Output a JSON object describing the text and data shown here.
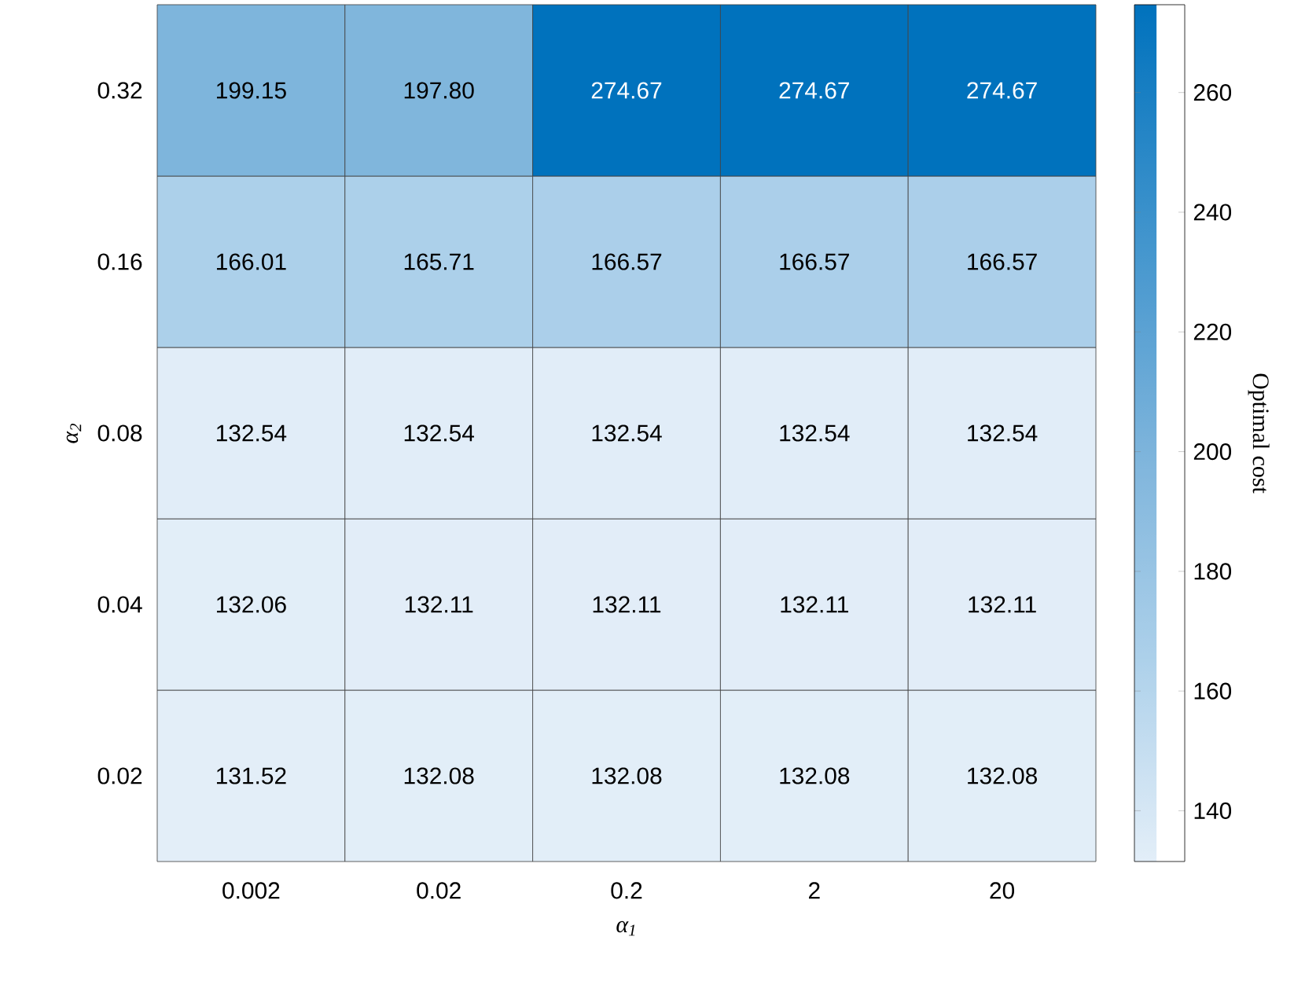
{
  "chart_data": {
    "type": "heatmap",
    "xlabel": "α$_{1}$",
    "ylabel": "α$_{2}$",
    "clabel": "Optimal cost",
    "categories": [
      "0.002",
      "0.02",
      "0.2",
      "2",
      "20"
    ],
    "y_categories": [
      "0.32",
      "0.16",
      "0.08",
      "0.04",
      "0.02"
    ],
    "cells": [
      [
        199.15,
        197.8,
        274.67,
        274.67,
        274.67
      ],
      [
        166.01,
        165.71,
        166.57,
        166.57,
        166.57
      ],
      [
        132.54,
        132.54,
        132.54,
        132.54,
        132.54
      ],
      [
        132.06,
        132.11,
        132.11,
        132.11,
        132.11
      ],
      [
        131.52,
        132.08,
        132.08,
        132.08,
        132.08
      ]
    ],
    "cell_labels": [
      [
        "199.15",
        "197.80",
        "274.67",
        "274.67",
        "274.67"
      ],
      [
        "166.01",
        "165.71",
        "166.57",
        "166.57",
        "166.57"
      ],
      [
        "132.54",
        "132.54",
        "132.54",
        "132.54",
        "132.54"
      ],
      [
        "132.06",
        "132.11",
        "132.11",
        "132.11",
        "132.11"
      ],
      [
        "131.52",
        "132.08",
        "132.08",
        "132.08",
        "132.08"
      ]
    ],
    "clim": [
      131.52,
      274.67
    ],
    "cticks": [
      140,
      160,
      180,
      200,
      220,
      240,
      260
    ]
  }
}
